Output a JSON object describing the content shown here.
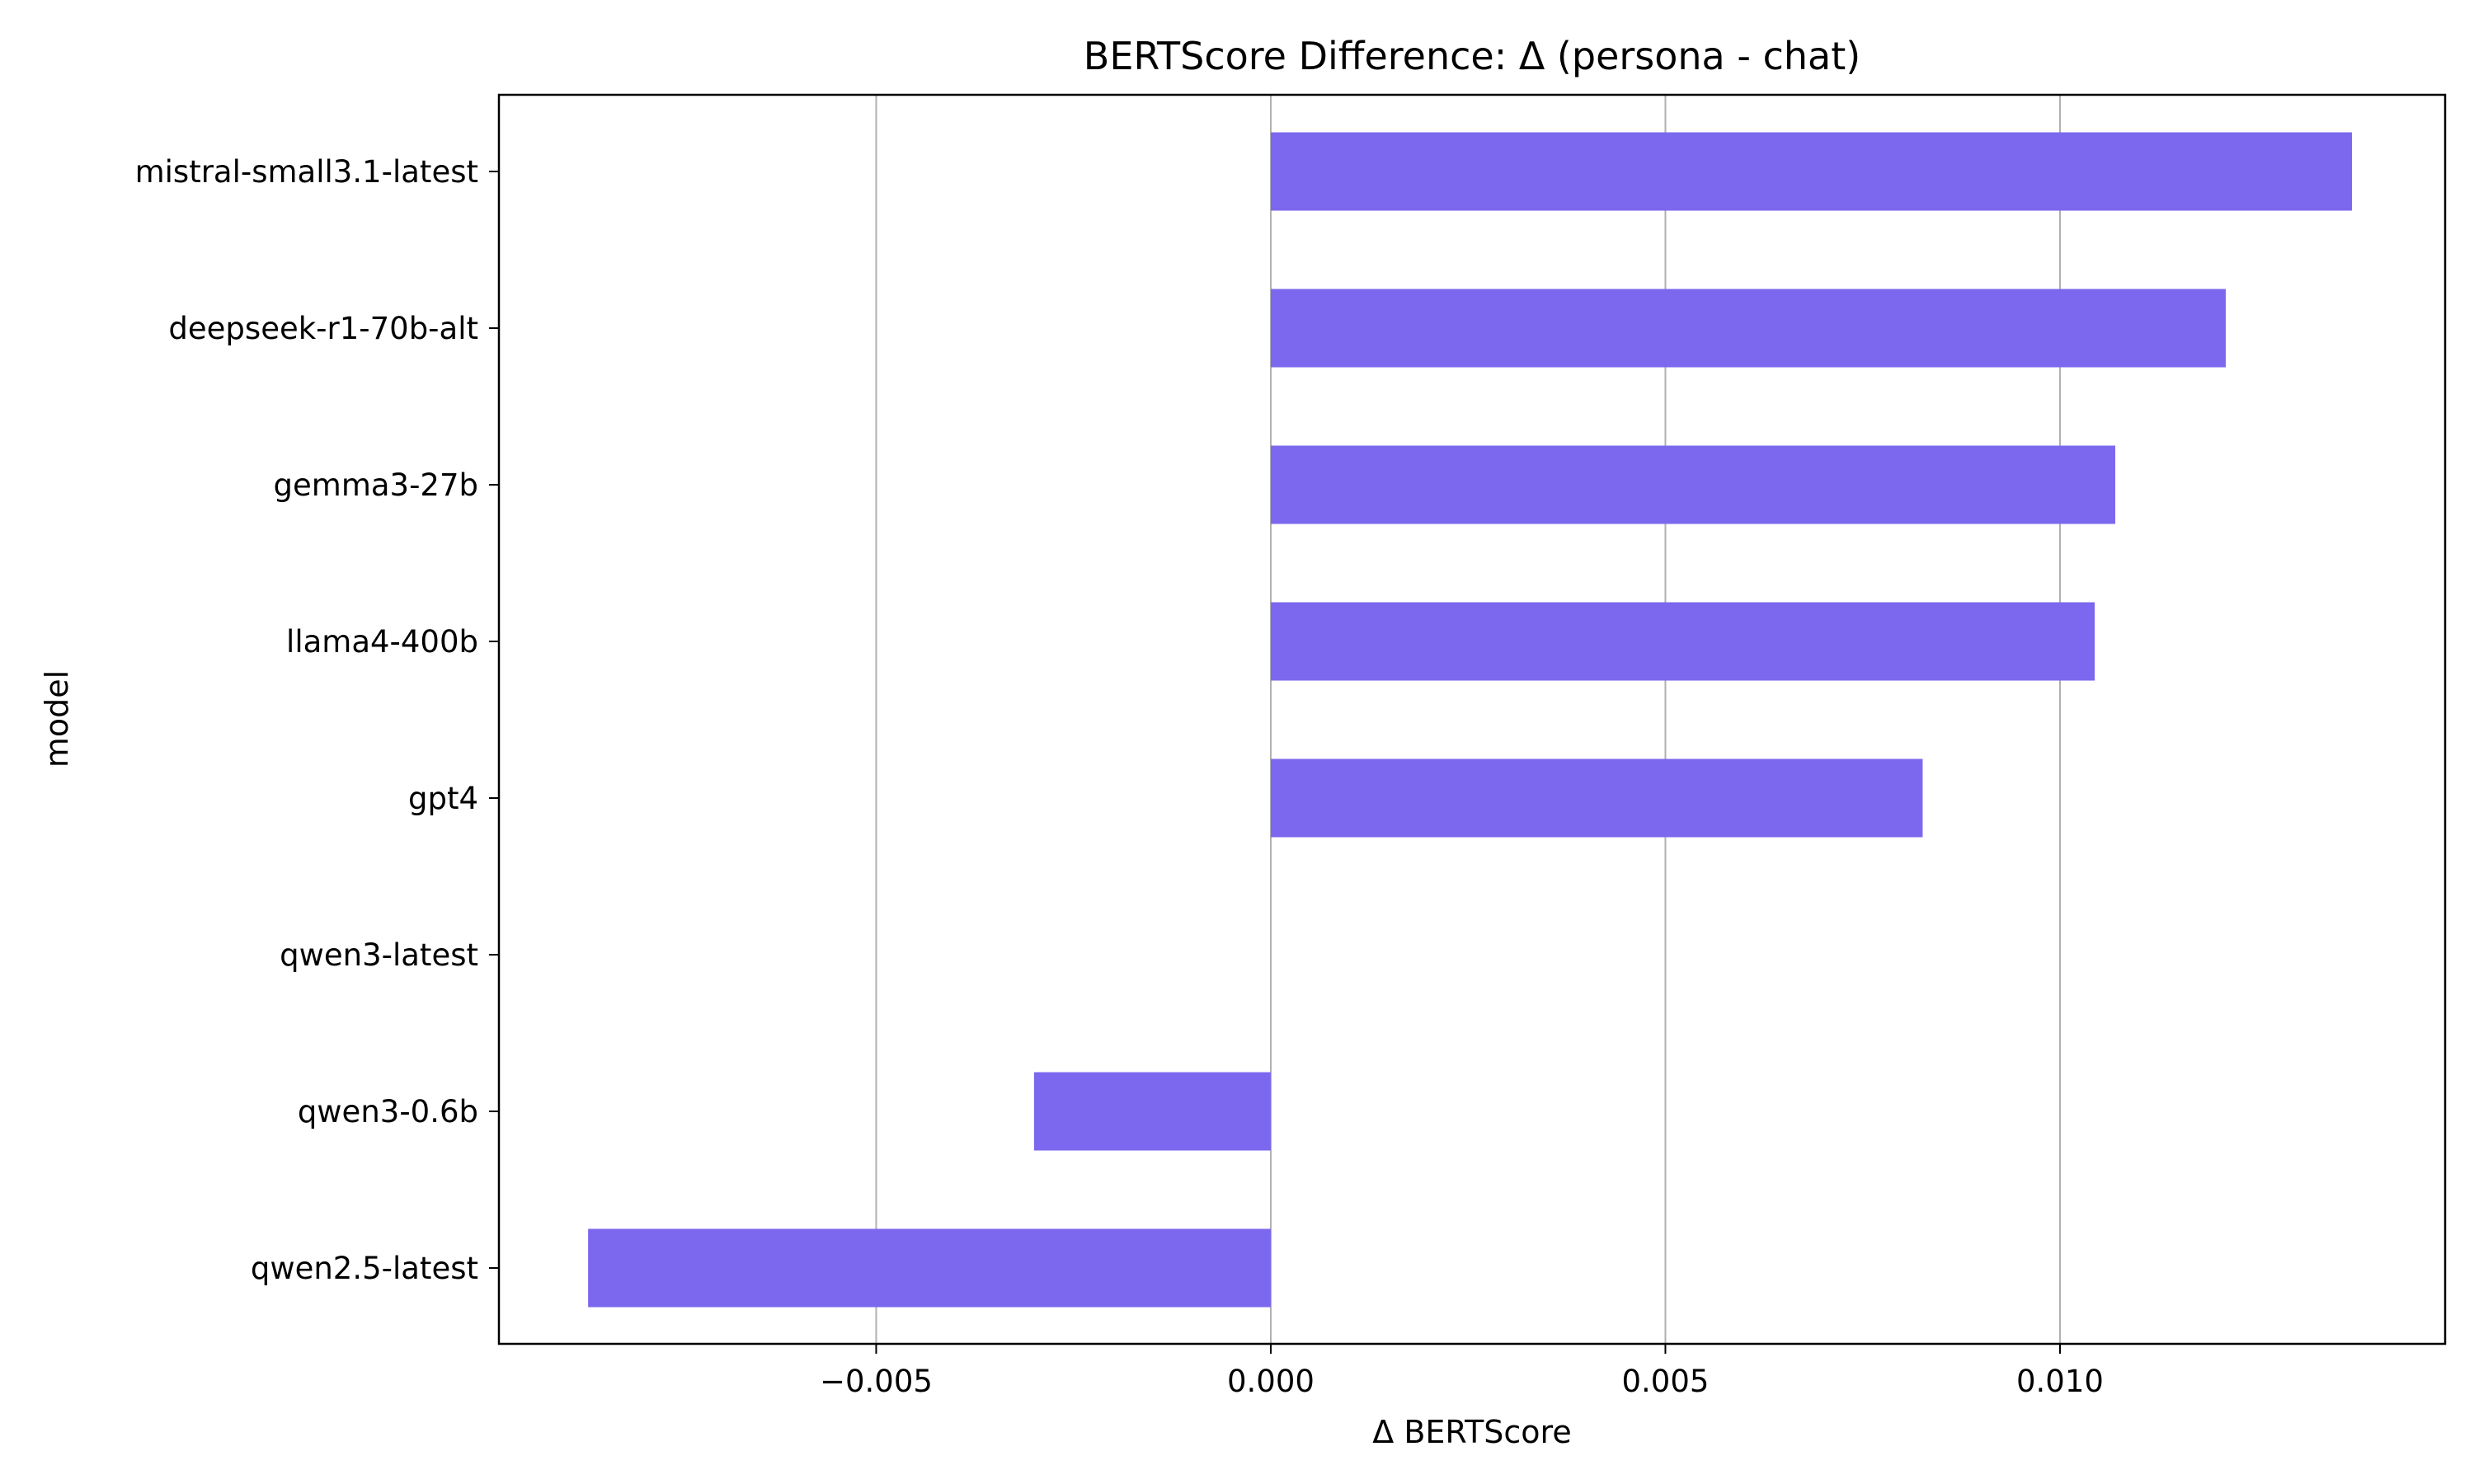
{
  "colors": {
    "bar": "#7b68ee",
    "grid": "#b0b0b0",
    "axis": "#000000",
    "background": "#ffffff"
  },
  "chart_data": {
    "type": "bar",
    "orientation": "horizontal",
    "title": "BERTScore Difference: Δ (persona - chat)",
    "xlabel": "Δ BERTScore",
    "ylabel": "model",
    "xlim": [
      -0.00978,
      0.01488
    ],
    "grid": "vertical lines at x ticks",
    "x_ticks": [
      {
        "value": -0.005,
        "label": "−0.005"
      },
      {
        "value": 0.0,
        "label": "0.000"
      },
      {
        "value": 0.005,
        "label": "0.005"
      },
      {
        "value": 0.01,
        "label": "0.010"
      }
    ],
    "categories": [
      "mistral-small3.1-latest",
      "deepseek-r1-70b-alt",
      "gemma3-27b",
      "llama4-400b",
      "gpt4",
      "qwen3-latest",
      "qwen3-0.6b",
      "qwen2.5-latest"
    ],
    "values": [
      0.0137,
      0.0121,
      0.0107,
      0.01044,
      0.00826,
      0.0,
      -0.003,
      -0.00865
    ]
  }
}
